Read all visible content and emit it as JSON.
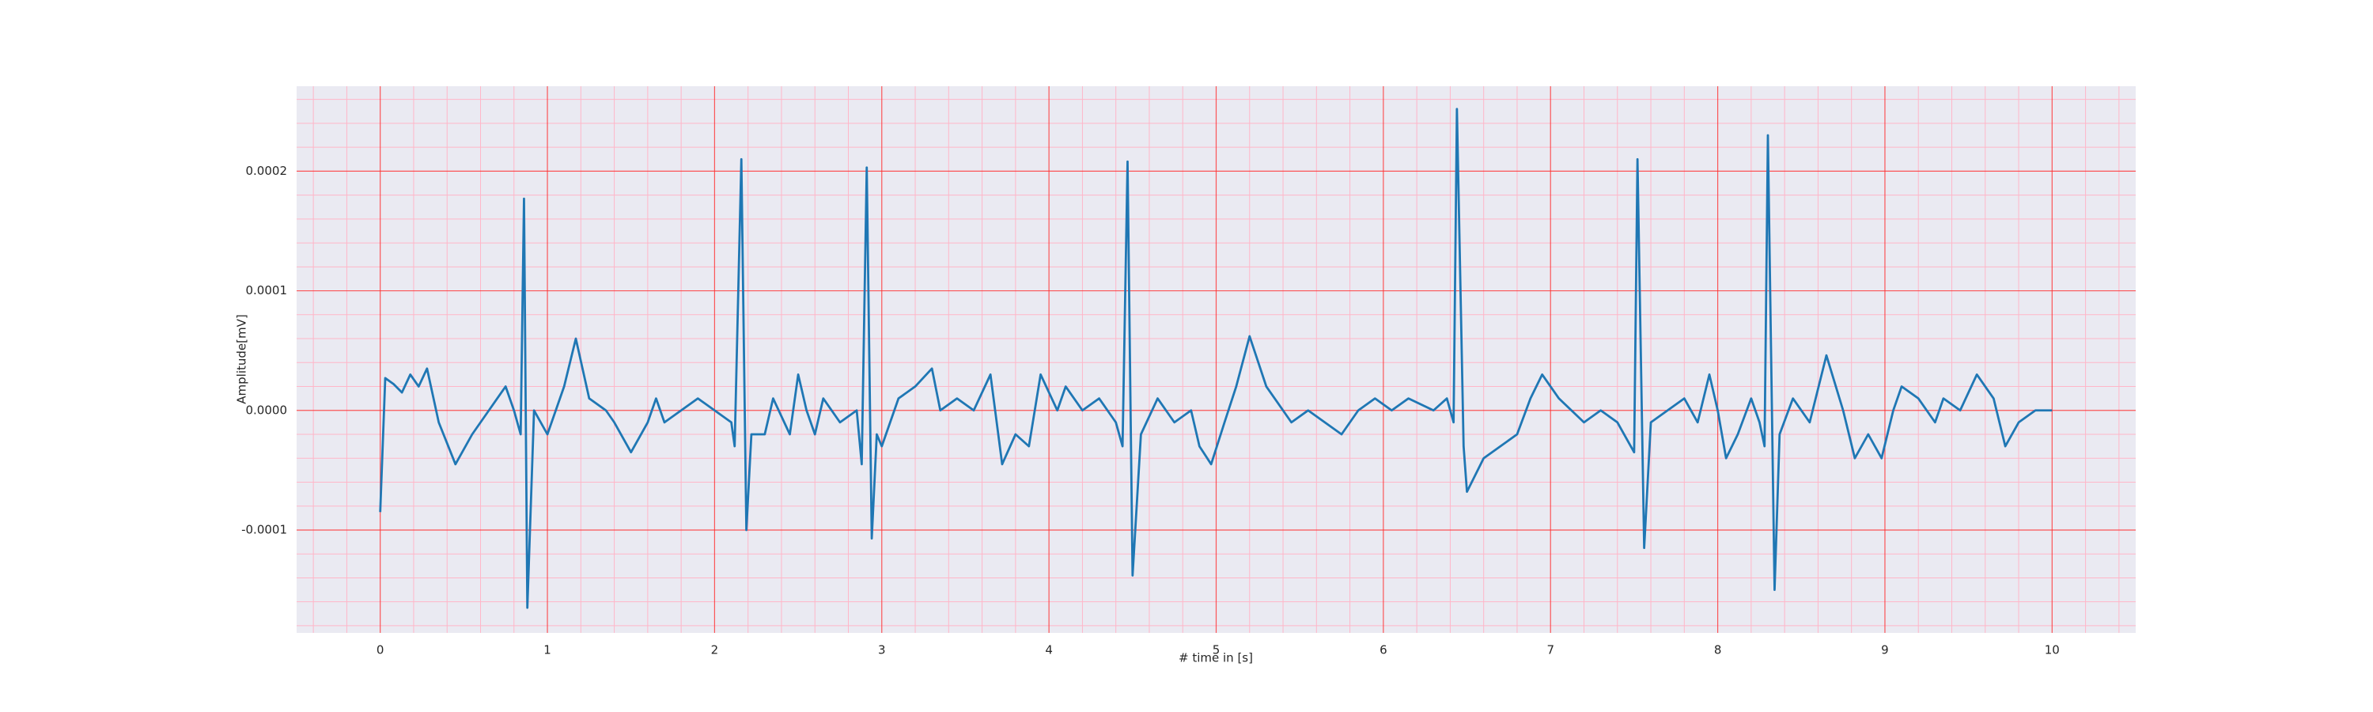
{
  "chart_data": {
    "type": "line",
    "xlabel": "# time in [s]",
    "ylabel": "Amplitude[mV]",
    "color": "#1f77b4",
    "grid": true,
    "xlim": [
      -0.5,
      10.5
    ],
    "ylim": [
      -0.000186,
      0.000271
    ],
    "xticks": [
      0,
      1,
      2,
      3,
      4,
      5,
      6,
      7,
      8,
      9,
      10
    ],
    "yticks": [
      -0.0001,
      {
        "value": 0,
        "label": "0.0000"
      },
      0.0001,
      0.0002
    ],
    "x": [
      0,
      0.03,
      0.08,
      0.13,
      0.18,
      0.23,
      0.28,
      0.35,
      0.45,
      0.55,
      0.65,
      0.75,
      0.8,
      0.84,
      0.86,
      0.88,
      0.92,
      1.0,
      1.1,
      1.17,
      1.25,
      1.35,
      1.4,
      1.5,
      1.6,
      1.65,
      1.7,
      1.8,
      1.9,
      2.0,
      2.1,
      2.12,
      2.16,
      2.19,
      2.22,
      2.3,
      2.35,
      2.45,
      2.5,
      2.55,
      2.6,
      2.65,
      2.75,
      2.85,
      2.88,
      2.91,
      2.94,
      2.97,
      3.0,
      3.05,
      3.1,
      3.2,
      3.3,
      3.35,
      3.45,
      3.55,
      3.65,
      3.72,
      3.8,
      3.88,
      3.95,
      4.05,
      4.1,
      4.2,
      4.3,
      4.4,
      4.44,
      4.47,
      4.5,
      4.55,
      4.65,
      4.75,
      4.85,
      4.9,
      4.97,
      5.05,
      5.12,
      5.2,
      5.3,
      5.45,
      5.55,
      5.65,
      5.75,
      5.85,
      5.95,
      6.05,
      6.15,
      6.3,
      6.38,
      6.42,
      6.44,
      6.48,
      6.5,
      6.6,
      6.7,
      6.8,
      6.88,
      6.95,
      7.05,
      7.2,
      7.3,
      7.4,
      7.5,
      7.52,
      7.56,
      7.6,
      7.7,
      7.8,
      7.88,
      7.95,
      8.0,
      8.05,
      8.12,
      8.2,
      8.25,
      8.28,
      8.3,
      8.34,
      8.37,
      8.45,
      8.55,
      8.65,
      8.75,
      8.82,
      8.9,
      8.98,
      9.05,
      9.1,
      9.2,
      9.3,
      9.35,
      9.45,
      9.55,
      9.65,
      9.72,
      9.8,
      9.9,
      10.0
    ],
    "values": [
      -8.5e-05,
      2.7e-05,
      2.2e-05,
      1.5e-05,
      3e-05,
      2e-05,
      3.5e-05,
      -1e-05,
      -4.5e-05,
      -2e-05,
      0,
      2e-05,
      0,
      -2e-05,
      0.000177,
      -0.000165,
      0,
      -2e-05,
      2e-05,
      6e-05,
      1e-05,
      0,
      -1e-05,
      -3.5e-05,
      -1e-05,
      1e-05,
      -1e-05,
      0,
      1e-05,
      0,
      -1e-05,
      -3e-05,
      0.00021,
      -0.0001,
      -2e-05,
      -2e-05,
      1e-05,
      -2e-05,
      3e-05,
      0,
      -2e-05,
      1e-05,
      -1e-05,
      0,
      -4.5e-05,
      0.000203,
      -0.000107,
      -2e-05,
      -3e-05,
      -1e-05,
      1e-05,
      2e-05,
      3.5e-05,
      0,
      1e-05,
      0,
      3e-05,
      -4.5e-05,
      -2e-05,
      -3e-05,
      3e-05,
      0,
      2e-05,
      0,
      1e-05,
      -1e-05,
      -3e-05,
      0.000208,
      -0.000138,
      -2e-05,
      1e-05,
      -1e-05,
      0,
      -3e-05,
      -4.5e-05,
      -1e-05,
      2e-05,
      6.2e-05,
      2e-05,
      -1e-05,
      0,
      -1e-05,
      -2e-05,
      0,
      1e-05,
      0,
      1e-05,
      0,
      1e-05,
      -1e-05,
      0.000252,
      -3e-05,
      -6.8e-05,
      -4e-05,
      -3e-05,
      -2e-05,
      1e-05,
      3e-05,
      1e-05,
      -1e-05,
      0,
      -1e-05,
      -3.5e-05,
      0.00021,
      -0.000115,
      -1e-05,
      0,
      1e-05,
      -1e-05,
      3e-05,
      0,
      -4e-05,
      -2e-05,
      1e-05,
      -1e-05,
      -3e-05,
      0.00023,
      -0.00015,
      -2e-05,
      1e-05,
      -1e-05,
      4.6e-05,
      0,
      -4e-05,
      -2e-05,
      -4e-05,
      0,
      2e-05,
      1e-05,
      -1e-05,
      1e-05,
      0,
      3e-05,
      1e-05,
      -3e-05,
      -1e-05,
      0,
      0
    ]
  }
}
